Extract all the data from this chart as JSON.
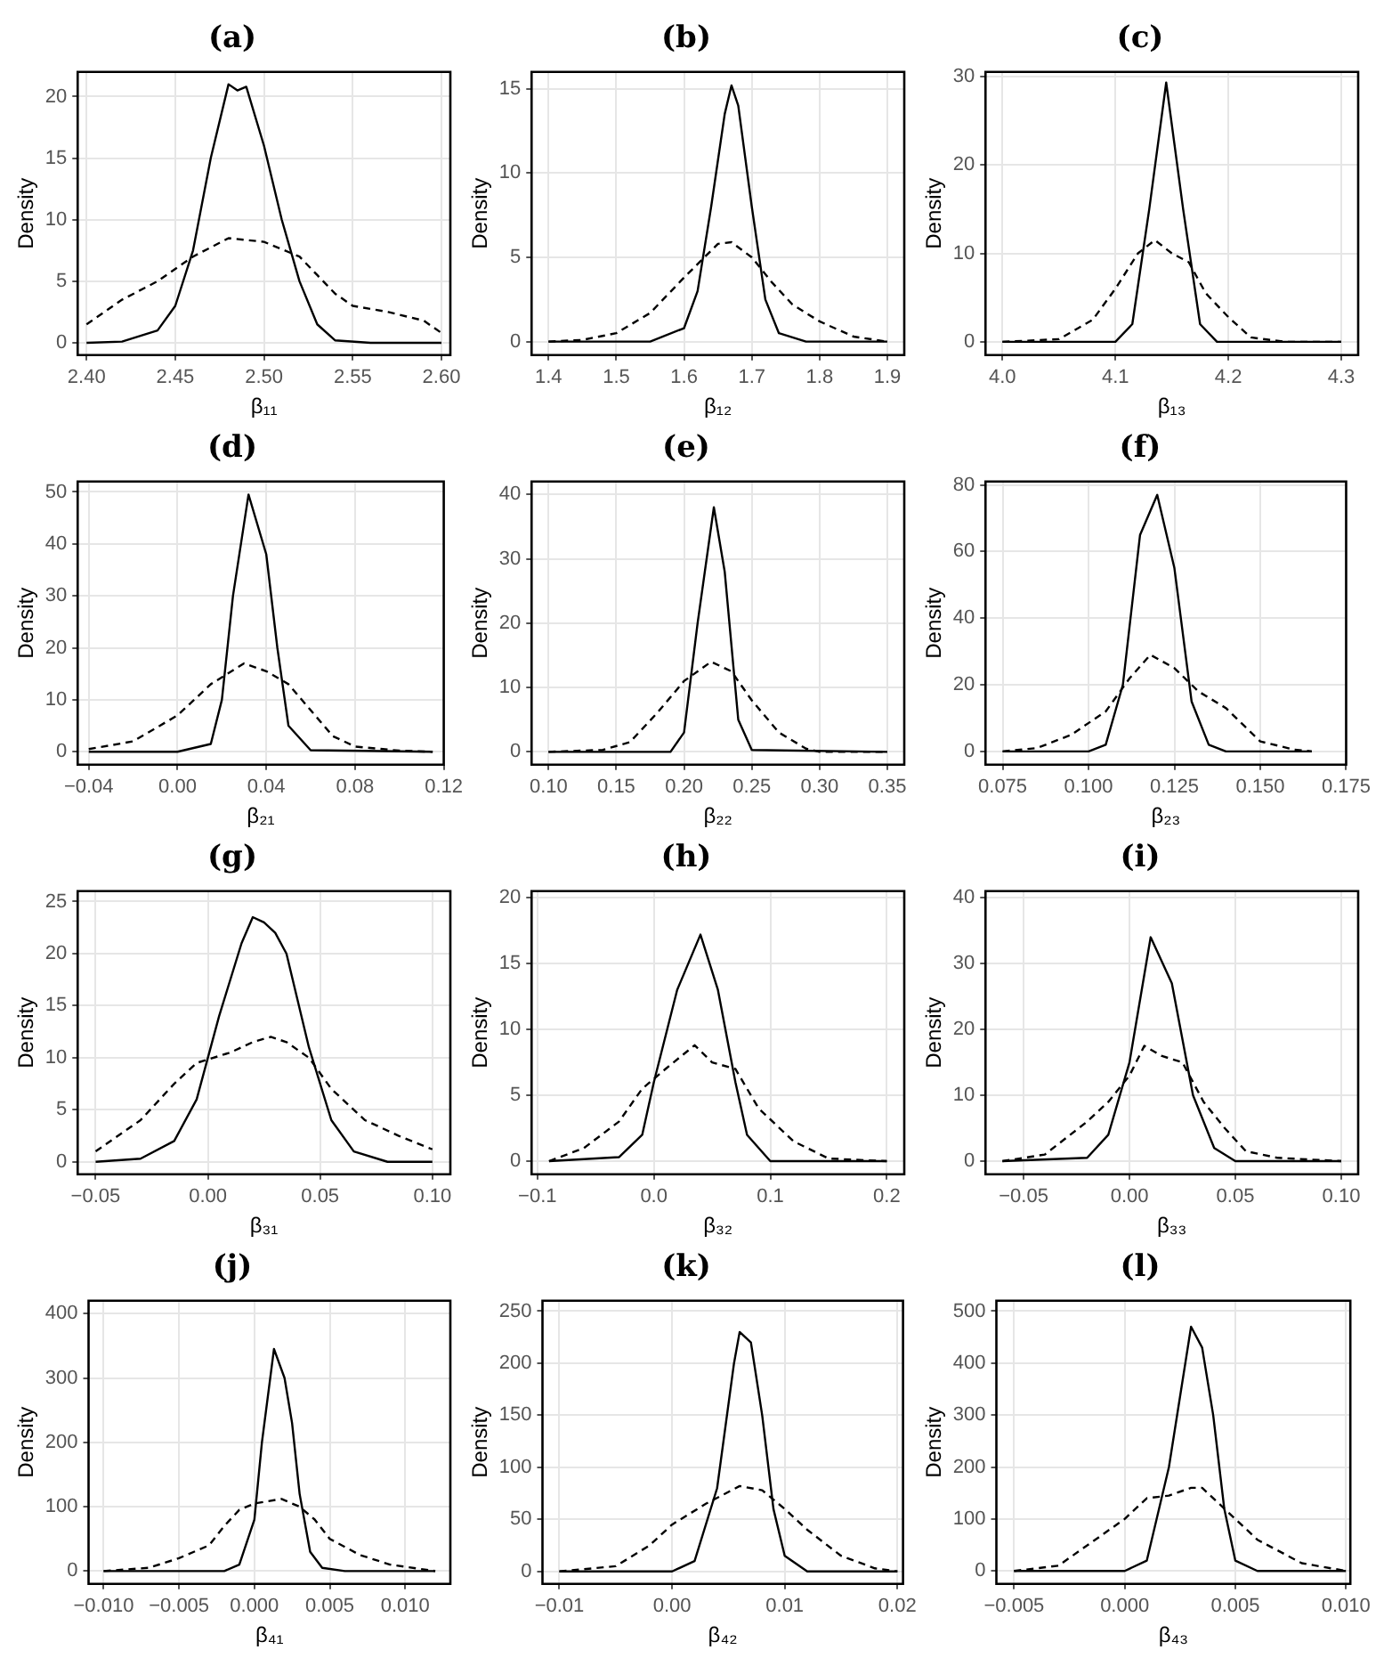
{
  "chart_data": [
    {
      "type": "line",
      "title": "(a)",
      "xlabel": "β₁₁",
      "ylabel": "Density",
      "grid": true,
      "xlim": [
        2.395,
        2.605
      ],
      "xticks": [
        {
          "value": 2.4,
          "label": "2.40"
        },
        {
          "value": 2.45,
          "label": "2.45"
        },
        {
          "value": 2.5,
          "label": "2.50"
        },
        {
          "value": 2.55,
          "label": "2.55"
        },
        {
          "value": 2.6,
          "label": "2.60"
        }
      ],
      "ylim": [
        -1,
        22
      ],
      "yticks": [
        0,
        5,
        10,
        15,
        20
      ],
      "series": [
        {
          "color": "#000000",
          "line_style": "solid",
          "x": [
            2.4,
            2.42,
            2.44,
            2.45,
            2.46,
            2.47,
            2.48,
            2.485,
            2.49,
            2.5,
            2.51,
            2.52,
            2.53,
            2.54,
            2.56,
            2.6
          ],
          "values": [
            0,
            0.1,
            1,
            3,
            7.5,
            15,
            21,
            20.5,
            20.8,
            16,
            10,
            5,
            1.5,
            0.2,
            0,
            0
          ]
        },
        {
          "color": "#000000",
          "line_style": "dashed",
          "x": [
            2.4,
            2.42,
            2.44,
            2.46,
            2.48,
            2.5,
            2.52,
            2.53,
            2.54,
            2.55,
            2.57,
            2.59,
            2.6
          ],
          "values": [
            1.5,
            3.5,
            5,
            7,
            8.5,
            8.2,
            7,
            5.5,
            4,
            3,
            2.5,
            1.8,
            0.8
          ]
        }
      ]
    },
    {
      "type": "line",
      "title": "(b)",
      "xlabel": "β₁₂",
      "ylabel": "Density",
      "grid": true,
      "xlim": [
        1.375,
        1.925
      ],
      "xticks": [
        1.4,
        1.5,
        1.6,
        1.7,
        1.8,
        1.9
      ],
      "ylim": [
        -0.8,
        16
      ],
      "yticks": [
        0,
        5,
        10,
        15
      ],
      "series": [
        {
          "color": "#000000",
          "line_style": "solid",
          "x": [
            1.4,
            1.55,
            1.6,
            1.62,
            1.64,
            1.66,
            1.67,
            1.68,
            1.7,
            1.72,
            1.74,
            1.78,
            1.9
          ],
          "values": [
            0,
            0,
            0.8,
            3,
            8,
            13.5,
            15.2,
            14,
            8,
            2.5,
            0.5,
            0,
            0
          ]
        },
        {
          "color": "#000000",
          "line_style": "dashed",
          "x": [
            1.4,
            1.45,
            1.5,
            1.55,
            1.6,
            1.65,
            1.67,
            1.7,
            1.73,
            1.76,
            1.8,
            1.85,
            1.9
          ],
          "values": [
            0,
            0.1,
            0.5,
            1.7,
            3.8,
            5.8,
            5.9,
            5,
            3.5,
            2.2,
            1.2,
            0.3,
            0
          ]
        }
      ]
    },
    {
      "type": "line",
      "title": "(c)",
      "xlabel": "β₁₃",
      "ylabel": "Density",
      "grid": true,
      "xlim": [
        3.985,
        4.315
      ],
      "xticks": [
        {
          "value": 4.0,
          "label": "4.0"
        },
        4.1,
        4.2,
        4.3
      ],
      "ylim": [
        -1.5,
        30.5
      ],
      "yticks": [
        0,
        10,
        20,
        30
      ],
      "series": [
        {
          "color": "#000000",
          "line_style": "solid",
          "x": [
            4.0,
            4.1,
            4.115,
            4.13,
            4.145,
            4.16,
            4.175,
            4.19,
            4.3
          ],
          "values": [
            0,
            0,
            2,
            15,
            29.3,
            15,
            2,
            0,
            0
          ]
        },
        {
          "color": "#000000",
          "line_style": "dashed",
          "x": [
            4.0,
            4.05,
            4.08,
            4.1,
            4.12,
            4.135,
            4.15,
            4.165,
            4.18,
            4.2,
            4.22,
            4.25,
            4.3
          ],
          "values": [
            0,
            0.3,
            2.5,
            6,
            10,
            11.5,
            10,
            9,
            5.5,
            2.8,
            0.5,
            0,
            0
          ]
        }
      ]
    },
    {
      "type": "line",
      "title": "(d)",
      "xlabel": "β₂₁",
      "ylabel": "Density",
      "grid": true,
      "xlim": [
        -0.045,
        0.12
      ],
      "xticks": [
        {
          "value": -0.04,
          "label": "−0.04"
        },
        {
          "value": 0,
          "label": "0.00"
        },
        {
          "value": 0.04,
          "label": "0.04"
        },
        {
          "value": 0.08,
          "label": "0.08"
        },
        {
          "value": 0.12,
          "label": "0.12"
        }
      ],
      "ylim": [
        -2.5,
        52
      ],
      "yticks": [
        0,
        10,
        20,
        30,
        40,
        50
      ],
      "series": [
        {
          "color": "#000000",
          "line_style": "solid",
          "x": [
            -0.04,
            0.0,
            0.015,
            0.02,
            0.025,
            0.032,
            0.04,
            0.045,
            0.05,
            0.06,
            0.115
          ],
          "values": [
            0,
            0,
            1.5,
            10,
            30,
            49.5,
            38,
            20,
            5,
            0.3,
            0
          ]
        },
        {
          "color": "#000000",
          "line_style": "dashed",
          "x": [
            -0.04,
            -0.02,
            0.0,
            0.015,
            0.03,
            0.04,
            0.05,
            0.06,
            0.07,
            0.08,
            0.1,
            0.115
          ],
          "values": [
            0.5,
            2,
            7,
            13,
            17,
            15.5,
            13,
            8,
            3,
            1,
            0.2,
            0
          ]
        }
      ]
    },
    {
      "type": "line",
      "title": "(e)",
      "xlabel": "β₂₂",
      "ylabel": "Density",
      "grid": true,
      "xlim": [
        0.0875,
        0.3625
      ],
      "xticks": [
        {
          "value": 0.1,
          "label": "0.10"
        },
        {
          "value": 0.15,
          "label": "0.15"
        },
        {
          "value": 0.2,
          "label": "0.20"
        },
        {
          "value": 0.25,
          "label": "0.25"
        },
        {
          "value": 0.3,
          "label": "0.30"
        },
        {
          "value": 0.35,
          "label": "0.35"
        }
      ],
      "ylim": [
        -2,
        42
      ],
      "yticks": [
        0,
        10,
        20,
        30,
        40
      ],
      "series": [
        {
          "color": "#000000",
          "line_style": "solid",
          "x": [
            0.1,
            0.19,
            0.2,
            0.21,
            0.222,
            0.23,
            0.24,
            0.25,
            0.35
          ],
          "values": [
            0,
            0,
            3,
            20,
            38,
            28,
            5,
            0.3,
            0
          ]
        },
        {
          "color": "#000000",
          "line_style": "dashed",
          "x": [
            0.1,
            0.14,
            0.16,
            0.18,
            0.2,
            0.22,
            0.235,
            0.25,
            0.27,
            0.29,
            0.3,
            0.35
          ],
          "values": [
            0,
            0.3,
            1.5,
            6,
            11,
            14,
            12.5,
            8,
            3,
            0.5,
            0,
            0
          ]
        }
      ]
    },
    {
      "type": "line",
      "title": "(f)",
      "xlabel": "β₂₃",
      "ylabel": "Density",
      "grid": true,
      "xlim": [
        0.07,
        0.175
      ],
      "xticks": [
        0.075,
        {
          "value": 0.1,
          "label": "0.100"
        },
        0.125,
        {
          "value": 0.15,
          "label": "0.150"
        },
        0.175
      ],
      "ylim": [
        -4,
        81
      ],
      "yticks": [
        0,
        20,
        40,
        60,
        80
      ],
      "series": [
        {
          "color": "#000000",
          "line_style": "solid",
          "x": [
            0.075,
            0.1,
            0.105,
            0.11,
            0.115,
            0.12,
            0.125,
            0.13,
            0.135,
            0.14,
            0.165
          ],
          "values": [
            0,
            0,
            2,
            20,
            65,
            77,
            55,
            15,
            2,
            0,
            0
          ]
        },
        {
          "color": "#000000",
          "line_style": "dashed",
          "x": [
            0.075,
            0.085,
            0.095,
            0.105,
            0.112,
            0.118,
            0.125,
            0.132,
            0.14,
            0.145,
            0.15,
            0.16,
            0.165
          ],
          "values": [
            0,
            1,
            5,
            12,
            22,
            29,
            25,
            18,
            13,
            8,
            3,
            0.5,
            0
          ]
        }
      ]
    },
    {
      "type": "line",
      "title": "(g)",
      "xlabel": "β₃₁",
      "ylabel": "Density",
      "grid": true,
      "xlim": [
        -0.058,
        0.108
      ],
      "xticks": [
        {
          "value": -0.05,
          "label": "−0.05"
        },
        {
          "value": 0,
          "label": "0.00"
        },
        0.05,
        {
          "value": 0.1,
          "label": "0.10"
        }
      ],
      "ylim": [
        -1.2,
        26
      ],
      "yticks": [
        0,
        5,
        10,
        15,
        20,
        25
      ],
      "series": [
        {
          "color": "#000000",
          "line_style": "solid",
          "x": [
            -0.05,
            -0.03,
            -0.015,
            -0.005,
            0.005,
            0.015,
            0.02,
            0.025,
            0.03,
            0.035,
            0.045,
            0.055,
            0.065,
            0.08,
            0.1
          ],
          "values": [
            0,
            0.3,
            2,
            6,
            14,
            21,
            23.5,
            23,
            22,
            20,
            11,
            4,
            1,
            0,
            0
          ]
        },
        {
          "color": "#000000",
          "line_style": "dashed",
          "x": [
            -0.05,
            -0.03,
            -0.015,
            -0.005,
            0.01,
            0.02,
            0.028,
            0.035,
            0.045,
            0.055,
            0.07,
            0.085,
            0.1
          ],
          "values": [
            1,
            4,
            7.5,
            9.5,
            10.5,
            11.5,
            12,
            11.5,
            10,
            7,
            4,
            2.5,
            1.2
          ]
        }
      ]
    },
    {
      "type": "line",
      "title": "(h)",
      "xlabel": "β₃₂",
      "ylabel": "Density",
      "grid": true,
      "xlim": [
        -0.105,
        0.215
      ],
      "xticks": [
        {
          "value": -0.1,
          "label": "−0.1"
        },
        {
          "value": 0,
          "label": "0.0"
        },
        0.1,
        0.2
      ],
      "ylim": [
        -1,
        20.5
      ],
      "yticks": [
        0,
        5,
        10,
        15,
        20
      ],
      "series": [
        {
          "color": "#000000",
          "line_style": "solid",
          "x": [
            -0.09,
            -0.03,
            -0.01,
            0.0,
            0.02,
            0.04,
            0.055,
            0.07,
            0.08,
            0.1,
            0.2
          ],
          "values": [
            0,
            0.3,
            2,
            6,
            13,
            17.2,
            13,
            6,
            2,
            0,
            0
          ]
        },
        {
          "color": "#000000",
          "line_style": "dashed",
          "x": [
            -0.09,
            -0.06,
            -0.03,
            -0.01,
            0.01,
            0.035,
            0.05,
            0.07,
            0.09,
            0.12,
            0.15,
            0.2
          ],
          "values": [
            0,
            1,
            3,
            5.5,
            7,
            8.8,
            7.5,
            7,
            4,
            1.5,
            0.2,
            0
          ]
        }
      ]
    },
    {
      "type": "line",
      "title": "(i)",
      "xlabel": "β₃₃",
      "ylabel": "Density",
      "grid": true,
      "xlim": [
        -0.068,
        0.108
      ],
      "xticks": [
        {
          "value": -0.05,
          "label": "−0.05"
        },
        {
          "value": 0,
          "label": "0.00"
        },
        0.05,
        {
          "value": 0.1,
          "label": "0.10"
        }
      ],
      "ylim": [
        -2,
        41
      ],
      "yticks": [
        0,
        10,
        20,
        30,
        40
      ],
      "series": [
        {
          "color": "#000000",
          "line_style": "solid",
          "x": [
            -0.06,
            -0.02,
            -0.01,
            0.0,
            0.01,
            0.02,
            0.03,
            0.04,
            0.05,
            0.1
          ],
          "values": [
            0,
            0.5,
            4,
            15,
            34,
            27,
            10,
            2,
            0,
            0
          ]
        },
        {
          "color": "#000000",
          "line_style": "dashed",
          "x": [
            -0.06,
            -0.04,
            -0.02,
            -0.01,
            0.0,
            0.007,
            0.015,
            0.025,
            0.035,
            0.045,
            0.055,
            0.07,
            0.1
          ],
          "values": [
            0,
            1,
            6,
            9,
            13,
            17.5,
            16,
            15,
            9,
            5,
            1.5,
            0.5,
            0
          ]
        }
      ]
    },
    {
      "type": "line",
      "title": "(j)",
      "xlabel": "β₄₁",
      "ylabel": "Density",
      "grid": true,
      "xlim": [
        -0.011,
        0.013
      ],
      "xticks": [
        {
          "value": -0.01,
          "label": "−0.010"
        },
        {
          "value": -0.005,
          "label": "−0.005"
        },
        {
          "value": 0,
          "label": "0.000"
        },
        0.005,
        {
          "value": 0.01,
          "label": "0.010"
        }
      ],
      "ylim": [
        -20,
        420
      ],
      "yticks": [
        0,
        100,
        200,
        300,
        400
      ],
      "series": [
        {
          "color": "#000000",
          "line_style": "solid",
          "x": [
            -0.01,
            -0.002,
            -0.001,
            0.0,
            0.0005,
            0.0013,
            0.002,
            0.0025,
            0.003,
            0.0037,
            0.0045,
            0.006,
            0.012
          ],
          "values": [
            0,
            0,
            10,
            80,
            200,
            345,
            300,
            230,
            120,
            30,
            5,
            0,
            0
          ]
        },
        {
          "color": "#000000",
          "line_style": "dashed",
          "x": [
            -0.01,
            -0.007,
            -0.005,
            -0.003,
            -0.002,
            -0.001,
            0.0,
            0.0018,
            0.003,
            0.004,
            0.005,
            0.007,
            0.009,
            0.012
          ],
          "values": [
            0,
            5,
            20,
            40,
            70,
            95,
            105,
            112,
            100,
            80,
            50,
            25,
            10,
            0
          ]
        }
      ]
    },
    {
      "type": "line",
      "title": "(k)",
      "xlabel": "β₄₂",
      "ylabel": "Density",
      "grid": true,
      "xlim": [
        -0.0115,
        0.0205
      ],
      "xticks": [
        {
          "value": -0.01,
          "label": "−0.01"
        },
        {
          "value": 0,
          "label": "0.00"
        },
        0.01,
        0.02
      ],
      "ylim": [
        -12,
        260
      ],
      "yticks": [
        0,
        50,
        100,
        150,
        200,
        250
      ],
      "series": [
        {
          "color": "#000000",
          "line_style": "solid",
          "x": [
            -0.01,
            0.0,
            0.002,
            0.004,
            0.0055,
            0.006,
            0.007,
            0.008,
            0.009,
            0.01,
            0.012,
            0.02
          ],
          "values": [
            0,
            0,
            10,
            80,
            200,
            230,
            220,
            150,
            60,
            15,
            0,
            0
          ]
        },
        {
          "color": "#000000",
          "line_style": "dashed",
          "x": [
            -0.01,
            -0.005,
            -0.002,
            0.0,
            0.003,
            0.006,
            0.008,
            0.01,
            0.012,
            0.015,
            0.018,
            0.02
          ],
          "values": [
            0,
            5,
            25,
            45,
            65,
            82,
            78,
            60,
            40,
            15,
            3,
            0
          ]
        }
      ]
    },
    {
      "type": "line",
      "title": "(l)",
      "xlabel": "β₄₃",
      "ylabel": "Density",
      "grid": true,
      "xlim": [
        -0.0058,
        0.0102
      ],
      "xticks": [
        {
          "value": -0.005,
          "label": "−0.005"
        },
        {
          "value": 0,
          "label": "0.000"
        },
        0.005,
        {
          "value": 0.01,
          "label": "0.010"
        }
      ],
      "ylim": [
        -25,
        520
      ],
      "yticks": [
        0,
        100,
        200,
        300,
        400,
        500
      ],
      "series": [
        {
          "color": "#000000",
          "line_style": "solid",
          "x": [
            -0.005,
            0.0,
            0.001,
            0.002,
            0.003,
            0.0035,
            0.004,
            0.0045,
            0.005,
            0.006,
            0.01
          ],
          "values": [
            0,
            0,
            20,
            200,
            470,
            430,
            300,
            120,
            20,
            0,
            0
          ]
        },
        {
          "color": "#000000",
          "line_style": "dashed",
          "x": [
            -0.005,
            -0.003,
            -0.002,
            -0.001,
            0.0,
            0.001,
            0.002,
            0.003,
            0.0035,
            0.0045,
            0.006,
            0.008,
            0.01
          ],
          "values": [
            0,
            10,
            40,
            70,
            100,
            140,
            145,
            160,
            160,
            120,
            60,
            15,
            0
          ]
        }
      ]
    }
  ]
}
